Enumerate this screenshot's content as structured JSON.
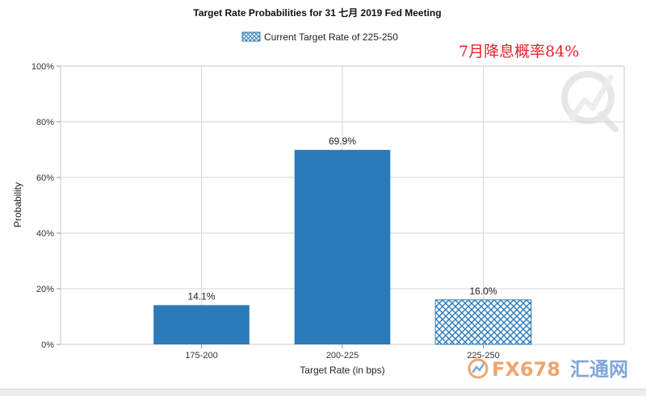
{
  "chart_data": {
    "type": "bar",
    "title": "Target Rate Probabilities for 31 七月 2019  Fed Meeting",
    "legend": {
      "label": "Current Target Rate of 225-250",
      "position": "top-center"
    },
    "xlabel": "Target Rate (in bps)",
    "ylabel": "Probability",
    "ylim": [
      0,
      100
    ],
    "y_ticks": [
      "0%",
      "20%",
      "40%",
      "60%",
      "80%",
      "100%"
    ],
    "grid": true,
    "categories": [
      "175-200",
      "200-225",
      "225-250"
    ],
    "values": [
      14.1,
      69.9,
      16.0
    ],
    "data_labels": [
      "14.1%",
      "69.9%",
      "16.0%"
    ],
    "hatched_category": "225-250",
    "bar_color": "#2b7bba",
    "annotation": "7月降息概率84%",
    "annotation_color": "#e8212b"
  },
  "watermark": {
    "brand": "FX678",
    "brand_cn": "汇通网"
  }
}
